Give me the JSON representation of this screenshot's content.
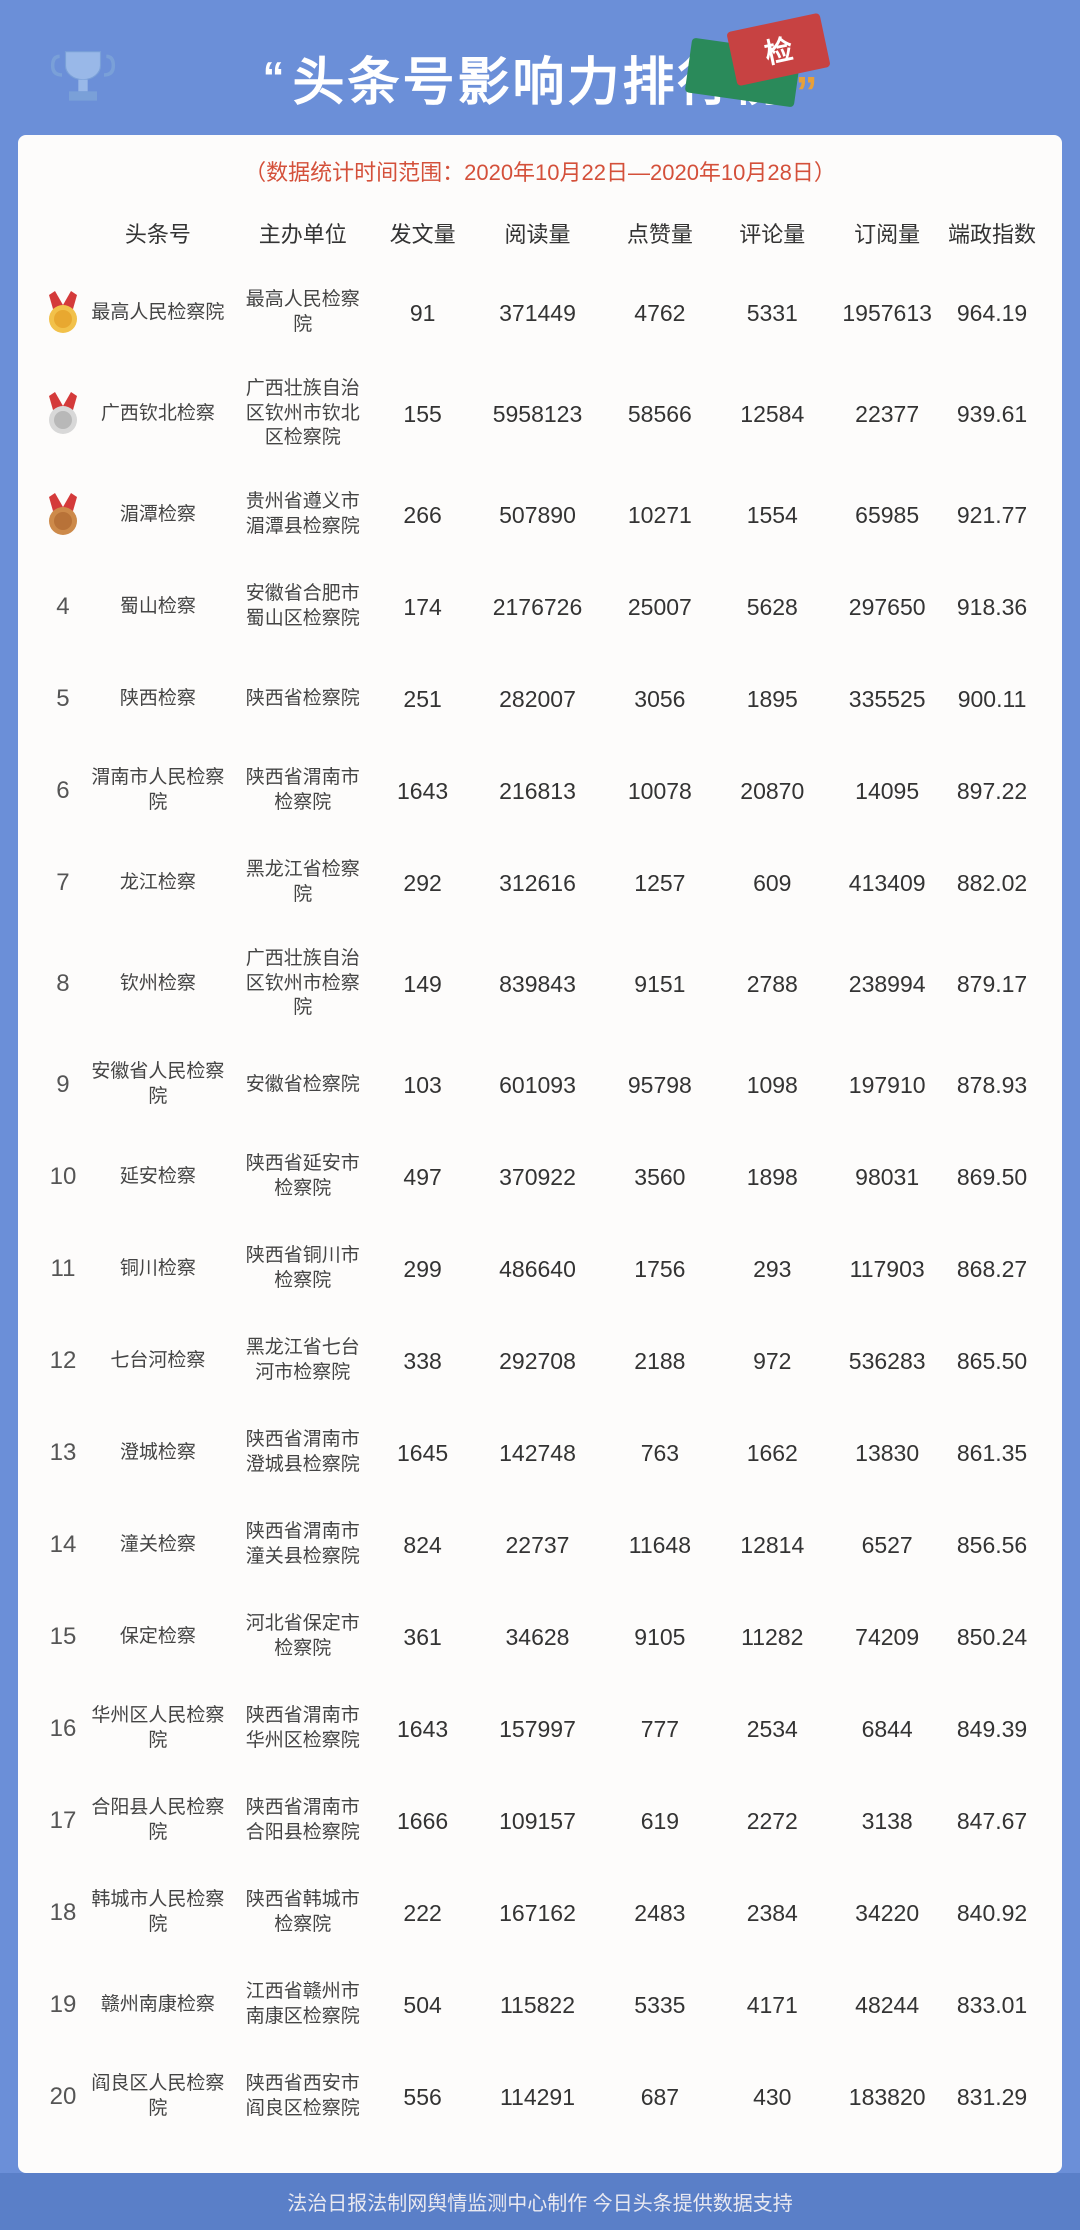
{
  "header": {
    "title": "头条号影响力排行榜",
    "stamp_label": "检",
    "date_range": "（数据统计时间范围：2020年10月22日—2020年10月28日）"
  },
  "columns": {
    "account": "头条号",
    "org": "主办单位",
    "posts": "发文量",
    "reads": "阅读量",
    "likes": "点赞量",
    "comments": "评论量",
    "subs": "订阅量",
    "index": "端政指数"
  },
  "medal_colors": {
    "gold_ribbon": "#d43a3a",
    "gold_disc": "#f2c14a",
    "gold_inner": "#e8a830",
    "silver_ribbon": "#d43a3a",
    "silver_disc": "#d8d8d8",
    "silver_inner": "#b8b8b8",
    "bronze_ribbon": "#d43a3a",
    "bronze_disc": "#cd8a4a",
    "bronze_inner": "#b87238"
  },
  "rows": [
    {
      "rank": "1",
      "medal": "gold",
      "account": "最高人民检察院",
      "org": "最高人民检察院",
      "posts": "91",
      "reads": "371449",
      "likes": "4762",
      "comments": "5331",
      "subs": "1957613",
      "index": "964.19"
    },
    {
      "rank": "2",
      "medal": "silver",
      "account": "广西钦北检察",
      "org": "广西壮族自治区钦州市钦北区检察院",
      "posts": "155",
      "reads": "5958123",
      "likes": "58566",
      "comments": "12584",
      "subs": "22377",
      "index": "939.61"
    },
    {
      "rank": "3",
      "medal": "bronze",
      "account": "湄潭检察",
      "org": "贵州省遵义市湄潭县检察院",
      "posts": "266",
      "reads": "507890",
      "likes": "10271",
      "comments": "1554",
      "subs": "65985",
      "index": "921.77"
    },
    {
      "rank": "4",
      "account": "蜀山检察",
      "org": "安徽省合肥市蜀山区检察院",
      "posts": "174",
      "reads": "2176726",
      "likes": "25007",
      "comments": "5628",
      "subs": "297650",
      "index": "918.36"
    },
    {
      "rank": "5",
      "account": "陕西检察",
      "org": "陕西省检察院",
      "posts": "251",
      "reads": "282007",
      "likes": "3056",
      "comments": "1895",
      "subs": "335525",
      "index": "900.11"
    },
    {
      "rank": "6",
      "account": "渭南市人民检察院",
      "org": "陕西省渭南市检察院",
      "posts": "1643",
      "reads": "216813",
      "likes": "10078",
      "comments": "20870",
      "subs": "14095",
      "index": "897.22"
    },
    {
      "rank": "7",
      "account": "龙江检察",
      "org": "黑龙江省检察院",
      "posts": "292",
      "reads": "312616",
      "likes": "1257",
      "comments": "609",
      "subs": "413409",
      "index": "882.02"
    },
    {
      "rank": "8",
      "account": "钦州检察",
      "org": "广西壮族自治区钦州市检察院",
      "posts": "149",
      "reads": "839843",
      "likes": "9151",
      "comments": "2788",
      "subs": "238994",
      "index": "879.17"
    },
    {
      "rank": "9",
      "account": "安徽省人民检察院",
      "org": "安徽省检察院",
      "posts": "103",
      "reads": "601093",
      "likes": "95798",
      "comments": "1098",
      "subs": "197910",
      "index": "878.93"
    },
    {
      "rank": "10",
      "account": "延安检察",
      "org": "陕西省延安市检察院",
      "posts": "497",
      "reads": "370922",
      "likes": "3560",
      "comments": "1898",
      "subs": "98031",
      "index": "869.50"
    },
    {
      "rank": "11",
      "account": "铜川检察",
      "org": "陕西省铜川市检察院",
      "posts": "299",
      "reads": "486640",
      "likes": "1756",
      "comments": "293",
      "subs": "117903",
      "index": "868.27"
    },
    {
      "rank": "12",
      "account": "七台河检察",
      "org": "黑龙江省七台河市检察院",
      "posts": "338",
      "reads": "292708",
      "likes": "2188",
      "comments": "972",
      "subs": "536283",
      "index": "865.50"
    },
    {
      "rank": "13",
      "account": "澄城检察",
      "org": "陕西省渭南市澄城县检察院",
      "posts": "1645",
      "reads": "142748",
      "likes": "763",
      "comments": "1662",
      "subs": "13830",
      "index": "861.35"
    },
    {
      "rank": "14",
      "account": "潼关检察",
      "org": "陕西省渭南市潼关县检察院",
      "posts": "824",
      "reads": "22737",
      "likes": "11648",
      "comments": "12814",
      "subs": "6527",
      "index": "856.56"
    },
    {
      "rank": "15",
      "account": "保定检察",
      "org": "河北省保定市检察院",
      "posts": "361",
      "reads": "34628",
      "likes": "9105",
      "comments": "11282",
      "subs": "74209",
      "index": "850.24"
    },
    {
      "rank": "16",
      "account": "华州区人民检察院",
      "org": "陕西省渭南市华州区检察院",
      "posts": "1643",
      "reads": "157997",
      "likes": "777",
      "comments": "2534",
      "subs": "6844",
      "index": "849.39"
    },
    {
      "rank": "17",
      "account": "合阳县人民检察院",
      "org": "陕西省渭南市合阳县检察院",
      "posts": "1666",
      "reads": "109157",
      "likes": "619",
      "comments": "2272",
      "subs": "3138",
      "index": "847.67"
    },
    {
      "rank": "18",
      "account": "韩城市人民检察院",
      "org": "陕西省韩城市检察院",
      "posts": "222",
      "reads": "167162",
      "likes": "2483",
      "comments": "2384",
      "subs": "34220",
      "index": "840.92"
    },
    {
      "rank": "19",
      "account": "赣州南康检察",
      "org": "江西省赣州市南康区检察院",
      "posts": "504",
      "reads": "115822",
      "likes": "5335",
      "comments": "4171",
      "subs": "48244",
      "index": "833.01"
    },
    {
      "rank": "20",
      "account": "阎良区人民检察院",
      "org": "陕西省西安市阎良区检察院",
      "posts": "556",
      "reads": "114291",
      "likes": "687",
      "comments": "430",
      "subs": "183820",
      "index": "831.29"
    }
  ],
  "footer": "法治日报法制网舆情监测中心制作  今日头条提供数据支持"
}
